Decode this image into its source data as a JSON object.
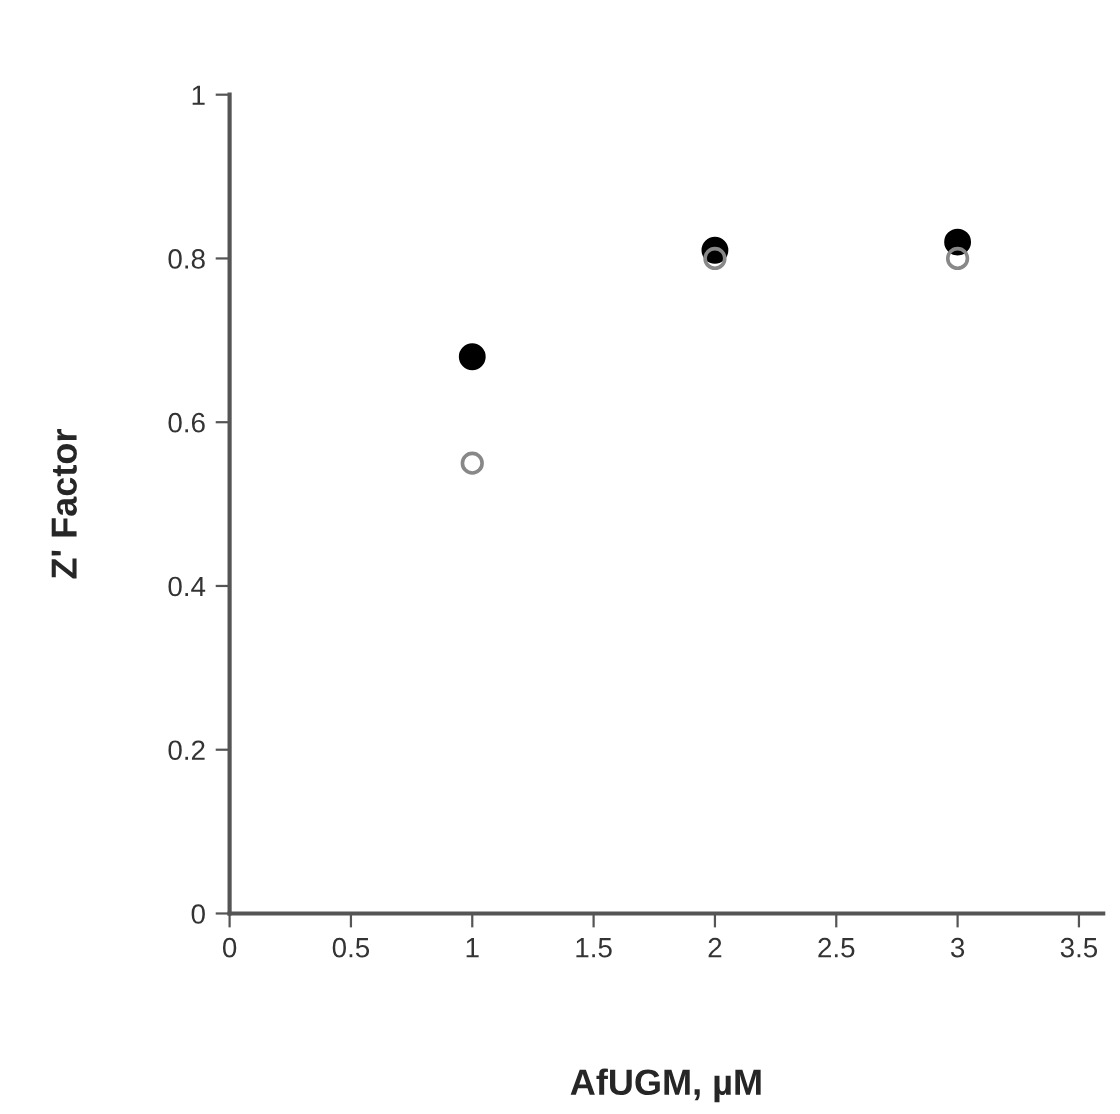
{
  "chart_data": {
    "type": "scatter",
    "xlabel": "AfUGM, µM",
    "ylabel": "Z' Factor",
    "x": [
      1,
      2,
      3
    ],
    "series": [
      {
        "color": "#888888",
        "values": [
          0.55,
          0.8,
          0.8
        ]
      },
      {
        "color": "#000000",
        "values": [
          0.68,
          0.81,
          0.82
        ]
      }
    ],
    "xlim": [
      0,
      3.6
    ],
    "xticks": [
      0,
      0.5,
      1,
      1.5,
      2,
      2.5,
      3,
      3.5
    ],
    "ylim": [
      0,
      1
    ],
    "yticks": [
      0,
      0.2,
      0.4,
      0.6,
      0.8,
      1
    ],
    "marker": "circle",
    "grid": false,
    "legend": false
  }
}
